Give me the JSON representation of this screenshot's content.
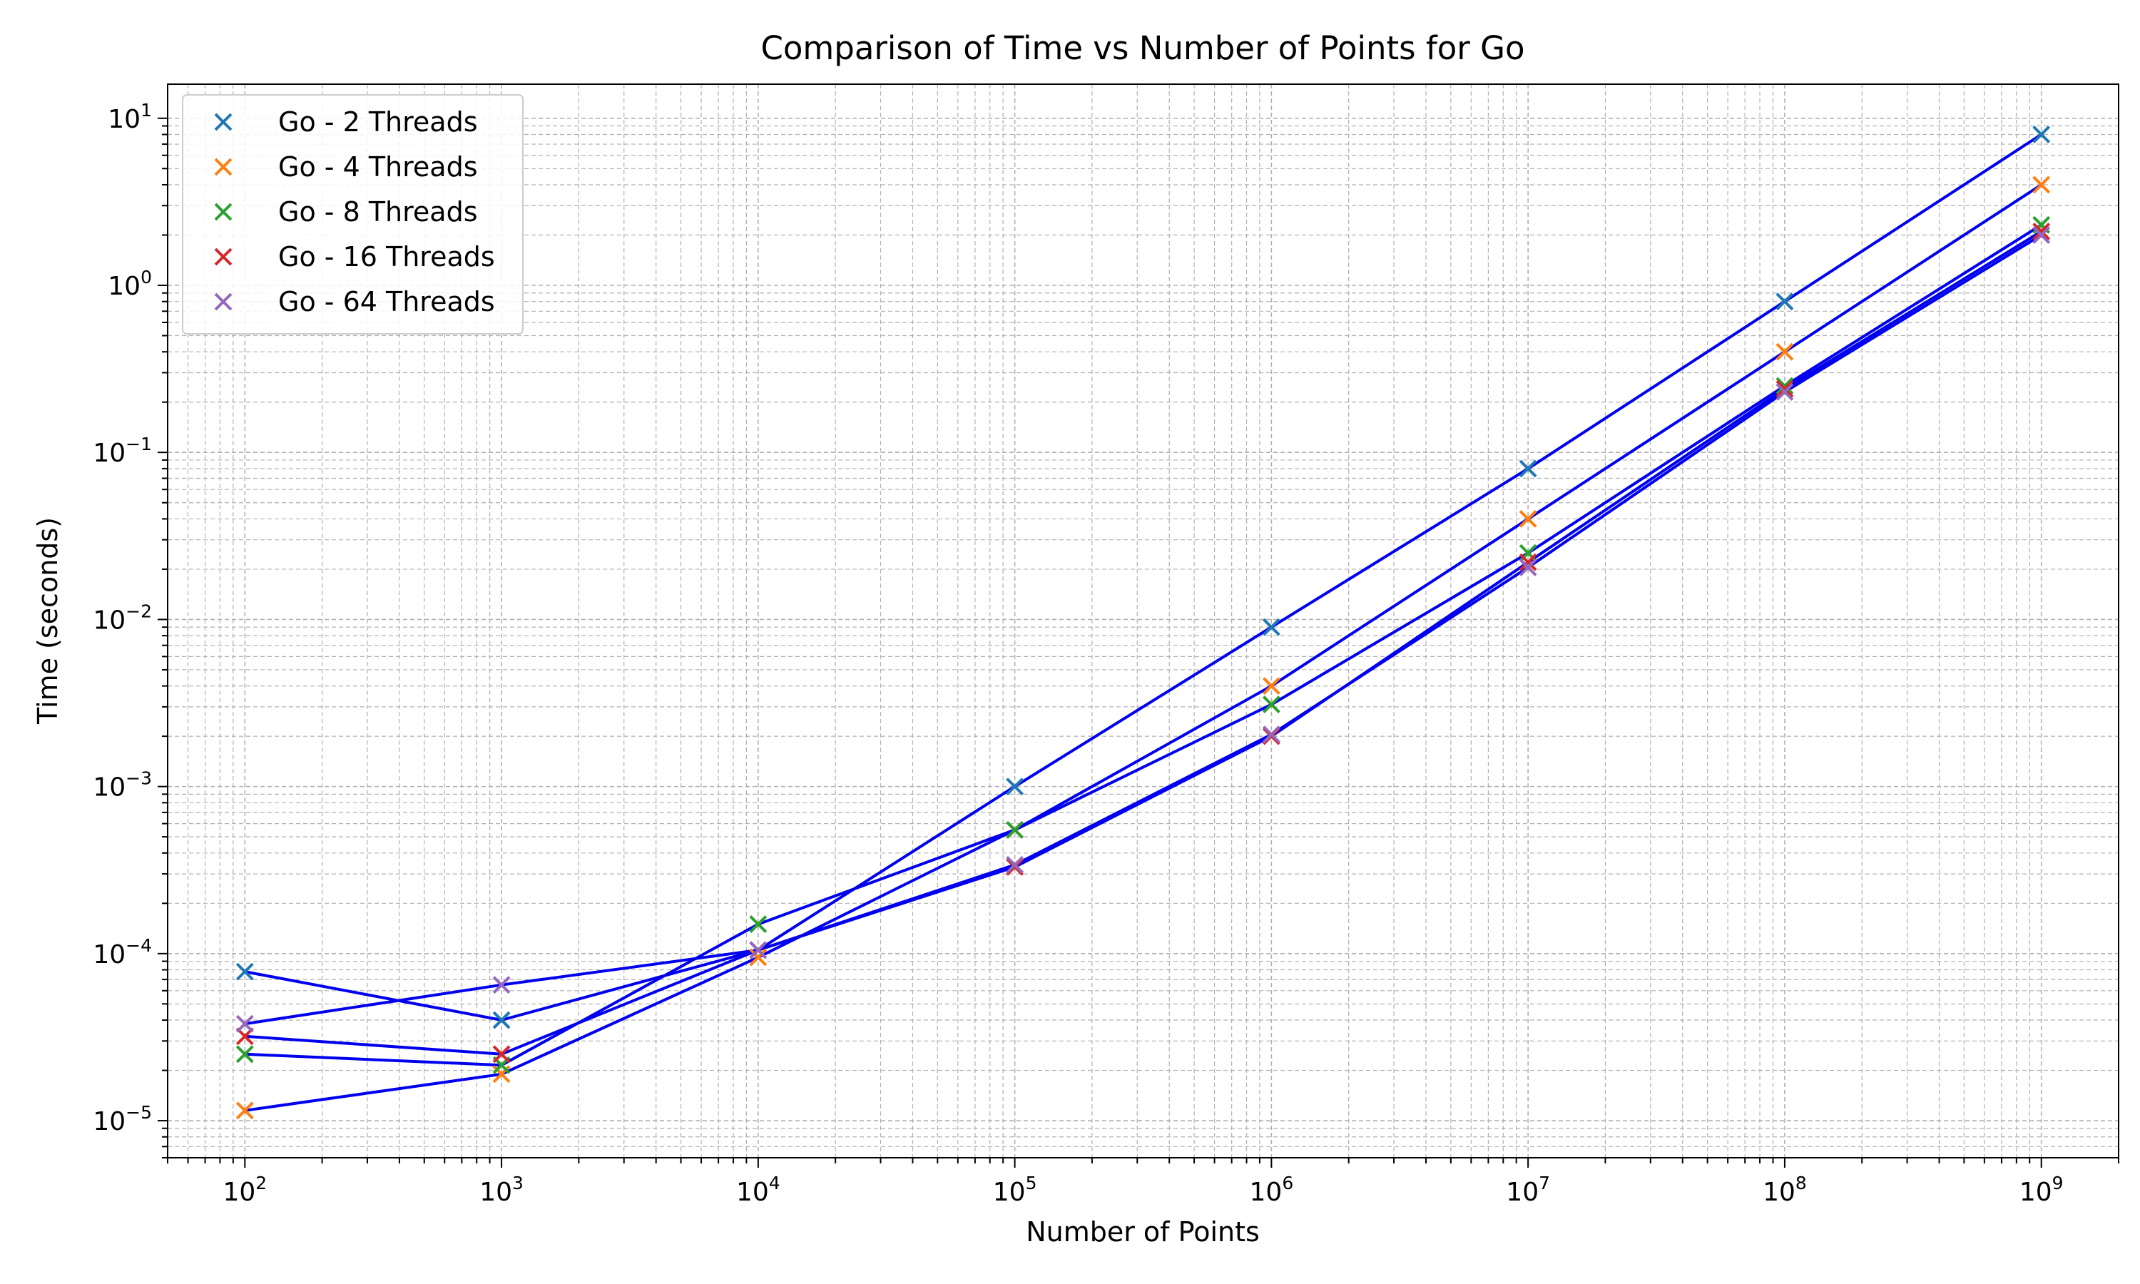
{
  "chart_data": {
    "type": "scatter",
    "title": "Comparison of Time vs Number of Points for Go",
    "xlabel": "Number of Points",
    "ylabel": "Time (seconds)",
    "xscale": "log",
    "yscale": "log",
    "xlim": [
      50,
      2000000000
    ],
    "ylim": [
      6e-06,
      16
    ],
    "x_ticks": [
      {
        "base": "10",
        "exp": "2",
        "value": 100
      },
      {
        "base": "10",
        "exp": "3",
        "value": 1000
      },
      {
        "base": "10",
        "exp": "4",
        "value": 10000
      },
      {
        "base": "10",
        "exp": "5",
        "value": 100000
      },
      {
        "base": "10",
        "exp": "6",
        "value": 1000000
      },
      {
        "base": "10",
        "exp": "7",
        "value": 10000000
      },
      {
        "base": "10",
        "exp": "8",
        "value": 100000000
      },
      {
        "base": "10",
        "exp": "9",
        "value": 1000000000
      }
    ],
    "y_ticks": [
      {
        "base": "10",
        "exp": "−5",
        "value": 1e-05
      },
      {
        "base": "10",
        "exp": "−4",
        "value": 0.0001
      },
      {
        "base": "10",
        "exp": "−3",
        "value": 0.001
      },
      {
        "base": "10",
        "exp": "−2",
        "value": 0.01
      },
      {
        "base": "10",
        "exp": "−1",
        "value": 0.1
      },
      {
        "base": "10",
        "exp": "0",
        "value": 1
      },
      {
        "base": "10",
        "exp": "1",
        "value": 10
      }
    ],
    "grid": true,
    "legend_position": "top-left",
    "line_color": "#0000ee",
    "x": [
      100,
      1000,
      10000,
      100000,
      1000000,
      10000000,
      100000000,
      1000000000
    ],
    "series": [
      {
        "name": "Go - 2 Threads",
        "color": "#1f77b4",
        "values": [
          7.8e-05,
          4e-05,
          0.000105,
          0.001,
          0.009,
          0.08,
          0.8,
          8.0
        ]
      },
      {
        "name": "Go - 4 Threads",
        "color": "#ff7f0e",
        "values": [
          1.15e-05,
          1.9e-05,
          9.5e-05,
          0.00055,
          0.004,
          0.04,
          0.4,
          4.0
        ]
      },
      {
        "name": "Go - 8 Threads",
        "color": "#2ca02c",
        "values": [
          2.5e-05,
          2.15e-05,
          0.00015,
          0.00055,
          0.0031,
          0.025,
          0.25,
          2.3
        ]
      },
      {
        "name": "Go - 16 Threads",
        "color": "#d62728",
        "values": [
          3.2e-05,
          2.5e-05,
          0.000105,
          0.00033,
          0.002,
          0.022,
          0.24,
          2.1
        ]
      },
      {
        "name": "Go - 64 Threads",
        "color": "#9467bd",
        "values": [
          3.8e-05,
          6.5e-05,
          0.000105,
          0.00034,
          0.00205,
          0.0205,
          0.23,
          2.0
        ]
      }
    ]
  }
}
